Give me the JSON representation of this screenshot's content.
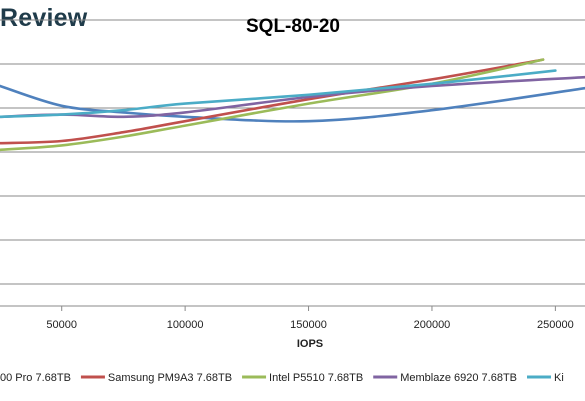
{
  "brand": {
    "text": "Review"
  },
  "chart_data": {
    "type": "line",
    "title": "SQL-80-20",
    "xlabel": "IOPS",
    "ylabel": "",
    "xlim": [
      25000,
      262000
    ],
    "ylim": [
      0,
      13
    ],
    "x_ticks": [
      50000,
      100000,
      150000,
      200000,
      250000
    ],
    "x_tick_labels": [
      "50000",
      "100000",
      "150000",
      "200000",
      "250000"
    ],
    "y_gridlines": [
      1,
      3,
      5,
      7,
      9,
      11,
      13
    ],
    "grid": true,
    "legend_position": "bottom",
    "series": [
      {
        "name": "00 Pro 7.68TB",
        "color": "#4f81bd",
        "x": [
          25000,
          50000,
          75000,
          100000,
          150000,
          200000,
          262000
        ],
        "y": [
          10.0,
          9.1,
          8.8,
          8.6,
          8.4,
          8.9,
          9.9
        ]
      },
      {
        "name": "Samsung PM9A3 7.68TB",
        "color": "#c0504d",
        "x": [
          25000,
          50000,
          75000,
          100000,
          150000,
          200000,
          245000
        ],
        "y": [
          7.4,
          7.5,
          7.9,
          8.4,
          9.4,
          10.3,
          11.2
        ]
      },
      {
        "name": "Intel P5510 7.68TB",
        "color": "#9bbb59",
        "x": [
          25000,
          50000,
          75000,
          100000,
          150000,
          200000,
          245000
        ],
        "y": [
          7.1,
          7.3,
          7.7,
          8.2,
          9.2,
          10.1,
          11.2
        ]
      },
      {
        "name": "Memblaze 6920 7.68TB",
        "color": "#8064a2",
        "x": [
          25000,
          50000,
          75000,
          100000,
          150000,
          200000,
          262000
        ],
        "y": [
          8.6,
          8.7,
          8.6,
          8.8,
          9.5,
          10.0,
          10.4
        ]
      },
      {
        "name": "Ki",
        "color": "#4bacc6",
        "x": [
          25000,
          50000,
          75000,
          100000,
          150000,
          200000,
          250000
        ],
        "y": [
          8.6,
          8.7,
          8.9,
          9.2,
          9.6,
          10.1,
          10.7
        ]
      }
    ]
  }
}
